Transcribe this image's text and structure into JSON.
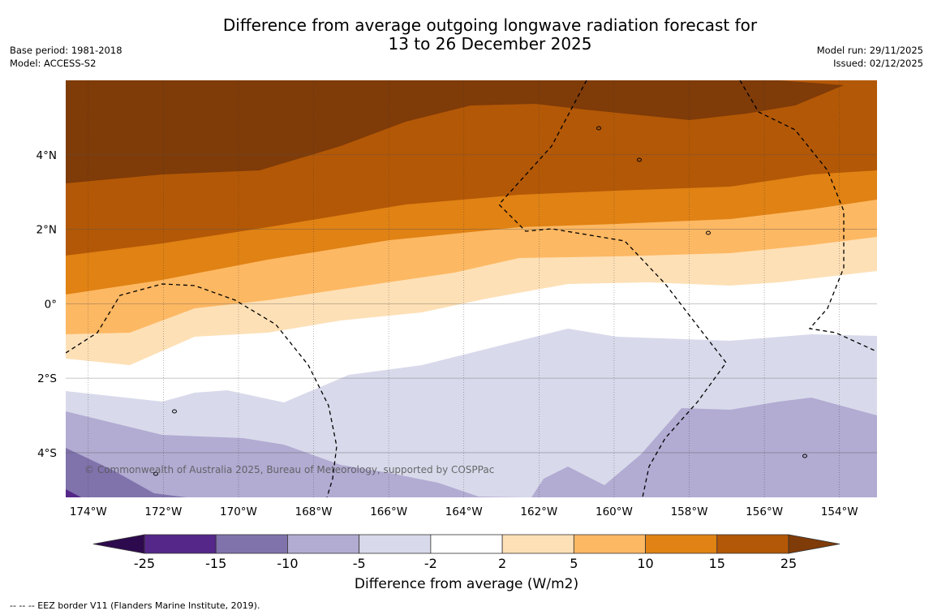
{
  "header": {
    "title_line1": "Difference from average outgoing longwave radiation forecast for",
    "title_line2": "13 to 26 December 2025",
    "base_period": "Base period: 1981-2018",
    "model": "Model: ACCESS-S2",
    "model_run": "Model run: 29/11/2025",
    "issued": "Issued: 02/12/2025"
  },
  "map": {
    "lon_labels": [
      "174°W",
      "172°W",
      "170°W",
      "168°W",
      "166°W",
      "164°W",
      "162°W",
      "160°W",
      "158°W",
      "156°W",
      "154°W"
    ],
    "lon_values": [
      -174,
      -172,
      -170,
      -168,
      -166,
      -164,
      -162,
      -160,
      -158,
      -156,
      -154
    ],
    "lat_labels": [
      "4°N",
      "2°N",
      "0°",
      "2°S",
      "4°S"
    ],
    "lat_values": [
      4,
      2,
      0,
      -2,
      -4
    ],
    "lon_range": [
      -174.6,
      -153.0
    ],
    "lat_range": [
      -5.2,
      6.0
    ],
    "copyright": "© Commonwealth of Australia 2025, Bureau of Meteorology, supported by COSPPac"
  },
  "colorbar": {
    "label": "Difference from average (W/m2)",
    "ticks": [
      "-25",
      "-15",
      "-10",
      "-5",
      "-2",
      "2",
      "5",
      "10",
      "15",
      "25"
    ],
    "levels": [
      -25,
      -15,
      -10,
      -5,
      -2,
      2,
      5,
      10,
      15,
      25
    ],
    "under_color": "#2d0a4e",
    "colors": [
      "#542788",
      "#8073ac",
      "#b2abd2",
      "#d8daeb",
      "#ffffff",
      "#fee0b6",
      "#fdb863",
      "#e08214",
      "#b35806"
    ],
    "over_color": "#7f3b08"
  },
  "footnote": "--  --  -- EEZ border V11 (Flanders Marine Institute, 2019)."
}
